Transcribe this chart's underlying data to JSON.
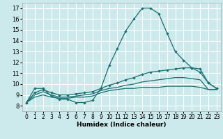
{
  "bg_color": "#cce9eb",
  "grid_color": "#ffffff",
  "line_color": "#1a7070",
  "xlabel": "Humidex (Indice chaleur)",
  "xlim": [
    -0.5,
    23.5
  ],
  "ylim": [
    7.5,
    17.5
  ],
  "xticks": [
    0,
    1,
    2,
    3,
    4,
    5,
    6,
    7,
    8,
    9,
    10,
    11,
    12,
    13,
    14,
    15,
    16,
    17,
    18,
    19,
    20,
    21,
    22,
    23
  ],
  "yticks": [
    8,
    9,
    10,
    11,
    12,
    13,
    14,
    15,
    16,
    17
  ],
  "curve1_x": [
    0,
    1,
    2,
    3,
    4,
    5,
    6,
    7,
    8,
    9,
    10,
    11,
    12,
    13,
    14,
    15,
    16,
    17,
    18,
    19,
    20,
    21,
    22,
    23
  ],
  "curve1_y": [
    8.3,
    9.6,
    9.6,
    8.9,
    8.6,
    8.6,
    8.3,
    8.3,
    8.5,
    9.6,
    11.7,
    13.3,
    14.9,
    16.0,
    17.0,
    17.0,
    16.5,
    14.7,
    13.0,
    12.2,
    11.5,
    11.1,
    10.1,
    9.6
  ],
  "curve2_x": [
    0,
    1,
    2,
    3,
    4,
    5,
    6,
    7,
    8,
    9,
    10,
    11,
    12,
    13,
    14,
    15,
    16,
    17,
    18,
    19,
    20,
    21,
    22,
    23
  ],
  "curve2_y": [
    8.3,
    9.2,
    9.5,
    9.2,
    9.0,
    9.0,
    9.1,
    9.2,
    9.3,
    9.6,
    9.9,
    10.1,
    10.4,
    10.6,
    10.9,
    11.1,
    11.2,
    11.3,
    11.4,
    11.5,
    11.5,
    11.4,
    10.1,
    9.6
  ],
  "curve3_x": [
    0,
    1,
    2,
    3,
    4,
    5,
    6,
    7,
    8,
    9,
    10,
    11,
    12,
    13,
    14,
    15,
    16,
    17,
    18,
    19,
    20,
    21,
    22,
    23
  ],
  "curve3_y": [
    8.3,
    9.0,
    9.3,
    9.0,
    8.8,
    8.8,
    8.9,
    9.0,
    9.1,
    9.4,
    9.6,
    9.7,
    9.9,
    10.0,
    10.2,
    10.3,
    10.4,
    10.5,
    10.6,
    10.6,
    10.5,
    10.4,
    9.5,
    9.5
  ],
  "curve4_x": [
    0,
    1,
    2,
    3,
    4,
    5,
    6,
    7,
    8,
    9,
    10,
    11,
    12,
    13,
    14,
    15,
    16,
    17,
    18,
    19,
    20,
    21,
    22,
    23
  ],
  "curve4_y": [
    8.3,
    8.8,
    9.0,
    8.8,
    8.7,
    8.7,
    8.8,
    8.8,
    8.9,
    9.2,
    9.4,
    9.5,
    9.6,
    9.6,
    9.7,
    9.7,
    9.7,
    9.8,
    9.8,
    9.8,
    9.8,
    9.7,
    9.5,
    9.5
  ]
}
